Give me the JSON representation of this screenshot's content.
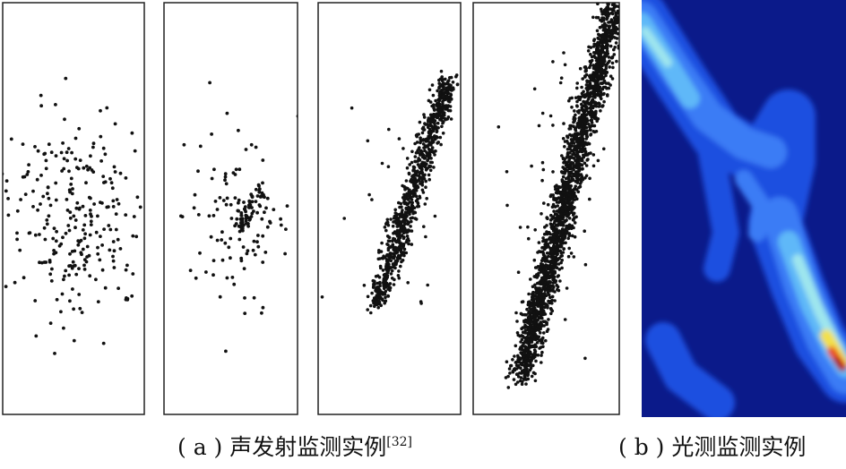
{
  "captions": [
    {
      "label": "( a )",
      "text": "声发射监测实例",
      "citation": "[32]"
    },
    {
      "label": "( b )",
      "text": "光测监测实例"
    }
  ]
}
